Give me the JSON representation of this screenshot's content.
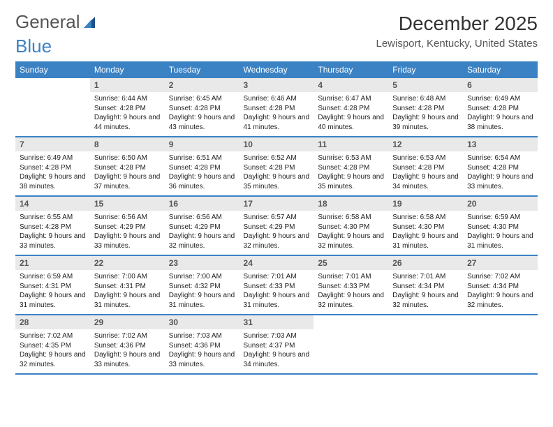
{
  "brand": {
    "word1": "General",
    "word2": "Blue"
  },
  "title": "December 2025",
  "location": "Lewisport, Kentucky, United States",
  "colors": {
    "brand_blue": "#3b82c4",
    "header_row_bg": "#3b82c4",
    "daynum_bg": "#e9e9e9",
    "text": "#222222",
    "muted": "#555555",
    "border": "#3b82c4",
    "background": "#ffffff"
  },
  "typography": {
    "title_fontsize": 28,
    "location_fontsize": 15,
    "dayheader_fontsize": 12,
    "daynum_fontsize": 12,
    "body_fontsize": 10
  },
  "day_headers": [
    "Sunday",
    "Monday",
    "Tuesday",
    "Wednesday",
    "Thursday",
    "Friday",
    "Saturday"
  ],
  "weeks": [
    [
      {
        "n": "",
        "sunrise": "",
        "sunset": "",
        "daylight": "",
        "empty": true
      },
      {
        "n": "1",
        "sunrise": "Sunrise: 6:44 AM",
        "sunset": "Sunset: 4:28 PM",
        "daylight": "Daylight: 9 hours and 44 minutes."
      },
      {
        "n": "2",
        "sunrise": "Sunrise: 6:45 AM",
        "sunset": "Sunset: 4:28 PM",
        "daylight": "Daylight: 9 hours and 43 minutes."
      },
      {
        "n": "3",
        "sunrise": "Sunrise: 6:46 AM",
        "sunset": "Sunset: 4:28 PM",
        "daylight": "Daylight: 9 hours and 41 minutes."
      },
      {
        "n": "4",
        "sunrise": "Sunrise: 6:47 AM",
        "sunset": "Sunset: 4:28 PM",
        "daylight": "Daylight: 9 hours and 40 minutes."
      },
      {
        "n": "5",
        "sunrise": "Sunrise: 6:48 AM",
        "sunset": "Sunset: 4:28 PM",
        "daylight": "Daylight: 9 hours and 39 minutes."
      },
      {
        "n": "6",
        "sunrise": "Sunrise: 6:49 AM",
        "sunset": "Sunset: 4:28 PM",
        "daylight": "Daylight: 9 hours and 38 minutes."
      }
    ],
    [
      {
        "n": "7",
        "sunrise": "Sunrise: 6:49 AM",
        "sunset": "Sunset: 4:28 PM",
        "daylight": "Daylight: 9 hours and 38 minutes."
      },
      {
        "n": "8",
        "sunrise": "Sunrise: 6:50 AM",
        "sunset": "Sunset: 4:28 PM",
        "daylight": "Daylight: 9 hours and 37 minutes."
      },
      {
        "n": "9",
        "sunrise": "Sunrise: 6:51 AM",
        "sunset": "Sunset: 4:28 PM",
        "daylight": "Daylight: 9 hours and 36 minutes."
      },
      {
        "n": "10",
        "sunrise": "Sunrise: 6:52 AM",
        "sunset": "Sunset: 4:28 PM",
        "daylight": "Daylight: 9 hours and 35 minutes."
      },
      {
        "n": "11",
        "sunrise": "Sunrise: 6:53 AM",
        "sunset": "Sunset: 4:28 PM",
        "daylight": "Daylight: 9 hours and 35 minutes."
      },
      {
        "n": "12",
        "sunrise": "Sunrise: 6:53 AM",
        "sunset": "Sunset: 4:28 PM",
        "daylight": "Daylight: 9 hours and 34 minutes."
      },
      {
        "n": "13",
        "sunrise": "Sunrise: 6:54 AM",
        "sunset": "Sunset: 4:28 PM",
        "daylight": "Daylight: 9 hours and 33 minutes."
      }
    ],
    [
      {
        "n": "14",
        "sunrise": "Sunrise: 6:55 AM",
        "sunset": "Sunset: 4:28 PM",
        "daylight": "Daylight: 9 hours and 33 minutes."
      },
      {
        "n": "15",
        "sunrise": "Sunrise: 6:56 AM",
        "sunset": "Sunset: 4:29 PM",
        "daylight": "Daylight: 9 hours and 33 minutes."
      },
      {
        "n": "16",
        "sunrise": "Sunrise: 6:56 AM",
        "sunset": "Sunset: 4:29 PM",
        "daylight": "Daylight: 9 hours and 32 minutes."
      },
      {
        "n": "17",
        "sunrise": "Sunrise: 6:57 AM",
        "sunset": "Sunset: 4:29 PM",
        "daylight": "Daylight: 9 hours and 32 minutes."
      },
      {
        "n": "18",
        "sunrise": "Sunrise: 6:58 AM",
        "sunset": "Sunset: 4:30 PM",
        "daylight": "Daylight: 9 hours and 32 minutes."
      },
      {
        "n": "19",
        "sunrise": "Sunrise: 6:58 AM",
        "sunset": "Sunset: 4:30 PM",
        "daylight": "Daylight: 9 hours and 31 minutes."
      },
      {
        "n": "20",
        "sunrise": "Sunrise: 6:59 AM",
        "sunset": "Sunset: 4:30 PM",
        "daylight": "Daylight: 9 hours and 31 minutes."
      }
    ],
    [
      {
        "n": "21",
        "sunrise": "Sunrise: 6:59 AM",
        "sunset": "Sunset: 4:31 PM",
        "daylight": "Daylight: 9 hours and 31 minutes."
      },
      {
        "n": "22",
        "sunrise": "Sunrise: 7:00 AM",
        "sunset": "Sunset: 4:31 PM",
        "daylight": "Daylight: 9 hours and 31 minutes."
      },
      {
        "n": "23",
        "sunrise": "Sunrise: 7:00 AM",
        "sunset": "Sunset: 4:32 PM",
        "daylight": "Daylight: 9 hours and 31 minutes."
      },
      {
        "n": "24",
        "sunrise": "Sunrise: 7:01 AM",
        "sunset": "Sunset: 4:33 PM",
        "daylight": "Daylight: 9 hours and 31 minutes."
      },
      {
        "n": "25",
        "sunrise": "Sunrise: 7:01 AM",
        "sunset": "Sunset: 4:33 PM",
        "daylight": "Daylight: 9 hours and 32 minutes."
      },
      {
        "n": "26",
        "sunrise": "Sunrise: 7:01 AM",
        "sunset": "Sunset: 4:34 PM",
        "daylight": "Daylight: 9 hours and 32 minutes."
      },
      {
        "n": "27",
        "sunrise": "Sunrise: 7:02 AM",
        "sunset": "Sunset: 4:34 PM",
        "daylight": "Daylight: 9 hours and 32 minutes."
      }
    ],
    [
      {
        "n": "28",
        "sunrise": "Sunrise: 7:02 AM",
        "sunset": "Sunset: 4:35 PM",
        "daylight": "Daylight: 9 hours and 32 minutes."
      },
      {
        "n": "29",
        "sunrise": "Sunrise: 7:02 AM",
        "sunset": "Sunset: 4:36 PM",
        "daylight": "Daylight: 9 hours and 33 minutes."
      },
      {
        "n": "30",
        "sunrise": "Sunrise: 7:03 AM",
        "sunset": "Sunset: 4:36 PM",
        "daylight": "Daylight: 9 hours and 33 minutes."
      },
      {
        "n": "31",
        "sunrise": "Sunrise: 7:03 AM",
        "sunset": "Sunset: 4:37 PM",
        "daylight": "Daylight: 9 hours and 34 minutes."
      },
      {
        "n": "",
        "sunrise": "",
        "sunset": "",
        "daylight": "",
        "empty": true
      },
      {
        "n": "",
        "sunrise": "",
        "sunset": "",
        "daylight": "",
        "empty": true
      },
      {
        "n": "",
        "sunrise": "",
        "sunset": "",
        "daylight": "",
        "empty": true
      }
    ]
  ]
}
